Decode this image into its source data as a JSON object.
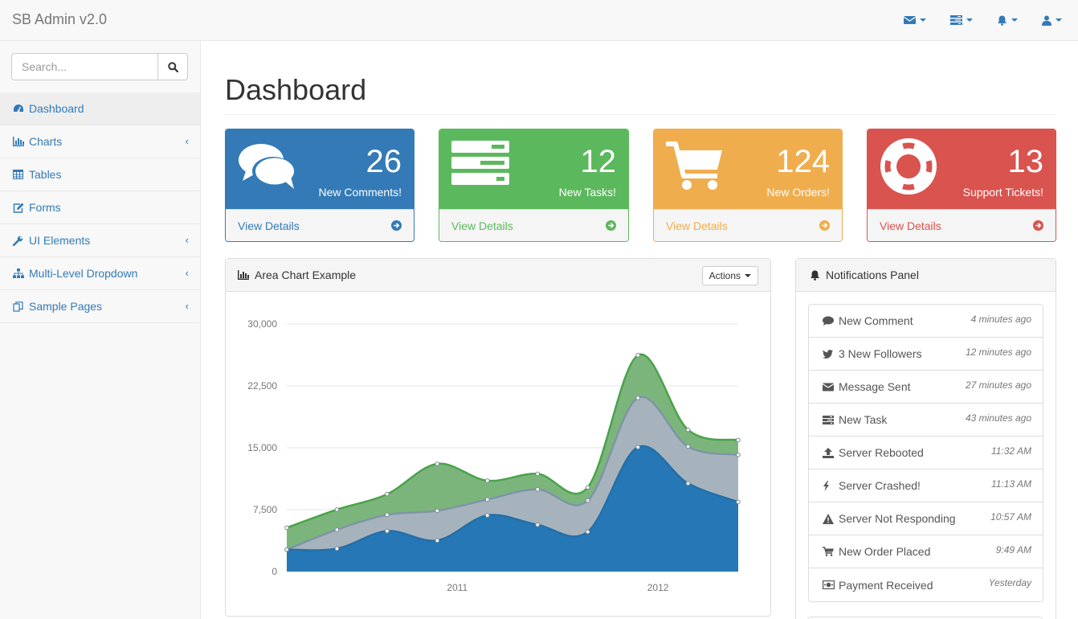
{
  "app": {
    "brand": "SB Admin v2.0"
  },
  "topnav": [
    {
      "icon": "envelope-icon"
    },
    {
      "icon": "tasks-icon"
    },
    {
      "icon": "bell-icon"
    },
    {
      "icon": "user-icon"
    }
  ],
  "search": {
    "placeholder": "Search..."
  },
  "sidebar": {
    "items": [
      {
        "label": "Dashboard",
        "icon": "dashboard-icon",
        "active": true,
        "arrow": ""
      },
      {
        "label": "Charts",
        "icon": "bar-chart-icon",
        "arrow": "‹"
      },
      {
        "label": "Tables",
        "icon": "table-icon",
        "arrow": ""
      },
      {
        "label": "Forms",
        "icon": "edit-icon",
        "arrow": ""
      },
      {
        "label": "UI Elements",
        "icon": "wrench-icon",
        "arrow": "‹"
      },
      {
        "label": "Multi-Level Dropdown",
        "icon": "sitemap-icon",
        "arrow": "‹"
      },
      {
        "label": "Sample Pages",
        "icon": "files-icon",
        "arrow": "‹"
      }
    ]
  },
  "page": {
    "title": "Dashboard"
  },
  "stats": [
    {
      "count": "26",
      "label": "New Comments!",
      "link": "View Details",
      "color": "#337ab7",
      "icon": "comments-icon"
    },
    {
      "count": "12",
      "label": "New Tasks!",
      "link": "View Details",
      "color": "#5cb85c",
      "icon": "tasks-icon"
    },
    {
      "count": "124",
      "label": "New Orders!",
      "link": "View Details",
      "color": "#f0ad4e",
      "icon": "shopping-cart-icon"
    },
    {
      "count": "13",
      "label": "Support Tickets!",
      "link": "View Details",
      "color": "#d9534f",
      "icon": "life-ring-icon"
    }
  ],
  "area_chart": {
    "title": "Area Chart Example",
    "actions_label": "Actions"
  },
  "notifications": {
    "title": "Notifications Panel",
    "items": [
      {
        "label": "New Comment",
        "time": "4 minutes ago",
        "icon": "comment-icon"
      },
      {
        "label": "3 New Followers",
        "time": "12 minutes ago",
        "icon": "twitter-icon"
      },
      {
        "label": "Message Sent",
        "time": "27 minutes ago",
        "icon": "envelope-icon"
      },
      {
        "label": "New Task",
        "time": "43 minutes ago",
        "icon": "tasks-icon"
      },
      {
        "label": "Server Rebooted",
        "time": "11:32 AM",
        "icon": "upload-icon"
      },
      {
        "label": "Server Crashed!",
        "time": "11:13 AM",
        "icon": "bolt-icon"
      },
      {
        "label": "Server Not Responding",
        "time": "10:57 AM",
        "icon": "warning-icon"
      },
      {
        "label": "New Order Placed",
        "time": "9:49 AM",
        "icon": "shopping-cart-icon"
      },
      {
        "label": "Payment Received",
        "time": "Yesterday",
        "icon": "money-icon"
      }
    ]
  },
  "chart_data": {
    "type": "area",
    "title": "",
    "xlabel": "",
    "ylabel": "",
    "x_tick_labels": [
      "2011",
      "2012"
    ],
    "y_tick_labels": [
      "0",
      "7,500",
      "15,000",
      "22,500",
      "30,000"
    ],
    "ylim": [
      0,
      30000
    ],
    "stacked": true,
    "grid": true,
    "x": [
      "2010 Q1",
      "2010 Q2",
      "2010 Q3",
      "2010 Q4",
      "2011 Q1",
      "2011 Q2",
      "2011 Q3",
      "2011 Q4",
      "2012 Q1",
      "2012 Q2"
    ],
    "series": [
      {
        "values": [
          2666,
          2778,
          4912,
          3767,
          6810,
          5670,
          4820,
          15073,
          10687,
          8432
        ],
        "color": "#2577b5"
      },
      {
        "values": [
          0,
          2294,
          1969,
          3597,
          1914,
          4293,
          3795,
          5967,
          4460,
          5713
        ],
        "color": "#a7b3bc"
      },
      {
        "values": [
          2647,
          2441,
          2501,
          5689,
          2293,
          1881,
          1588,
          5175,
          2028,
          1791
        ],
        "color": "#7cb57c"
      }
    ]
  }
}
